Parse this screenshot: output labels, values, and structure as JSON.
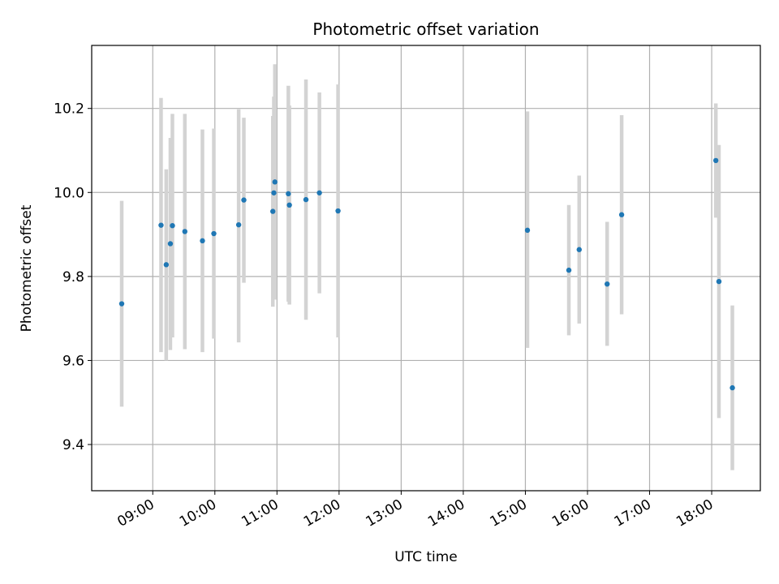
{
  "chart_data": {
    "type": "scatter",
    "title": "Photometric offset variation",
    "xlabel": "UTC time",
    "ylabel": "Photometric offset",
    "xlim": [
      "08:01",
      "18:47"
    ],
    "ylim": [
      9.29,
      10.35
    ],
    "x_ticks": [
      "09:00",
      "10:00",
      "11:00",
      "12:00",
      "13:00",
      "14:00",
      "15:00",
      "16:00",
      "17:00",
      "18:00"
    ],
    "y_ticks": [
      9.4,
      9.6,
      9.8,
      10.0,
      10.2
    ],
    "y_tick_labels": [
      "9.4",
      "9.6",
      "9.8",
      "10.0",
      "10.2"
    ],
    "grid": true,
    "colors": {
      "point": "#1f77b4",
      "errorbar": "#d3d3d3",
      "grid": "#b0b0b0"
    },
    "points": [
      {
        "x": "08:30",
        "y": 9.735,
        "lo": 9.49,
        "hi": 9.98
      },
      {
        "x": "09:08",
        "y": 9.922,
        "lo": 9.62,
        "hi": 10.225
      },
      {
        "x": "09:13",
        "y": 9.828,
        "lo": 9.6,
        "hi": 10.055
      },
      {
        "x": "09:17",
        "y": 9.878,
        "lo": 9.625,
        "hi": 10.13
      },
      {
        "x": "09:19",
        "y": 9.921,
        "lo": 9.655,
        "hi": 10.187
      },
      {
        "x": "09:31",
        "y": 9.907,
        "lo": 9.627,
        "hi": 10.187
      },
      {
        "x": "09:48",
        "y": 9.885,
        "lo": 9.62,
        "hi": 10.15
      },
      {
        "x": "09:59",
        "y": 9.902,
        "lo": 9.652,
        "hi": 10.152
      },
      {
        "x": "10:23",
        "y": 9.923,
        "lo": 9.643,
        "hi": 10.198
      },
      {
        "x": "10:28",
        "y": 9.982,
        "lo": 9.785,
        "hi": 10.178
      },
      {
        "x": "10:56",
        "y": 9.955,
        "lo": 9.728,
        "hi": 10.182
      },
      {
        "x": "10:57",
        "y": 9.999,
        "lo": 9.749,
        "hi": 10.228
      },
      {
        "x": "10:58",
        "y": 10.025,
        "lo": 9.745,
        "hi": 10.305
      },
      {
        "x": "11:11",
        "y": 9.997,
        "lo": 9.74,
        "hi": 10.254
      },
      {
        "x": "11:12",
        "y": 9.97,
        "lo": 9.733,
        "hi": 10.207
      },
      {
        "x": "11:28",
        "y": 9.983,
        "lo": 9.697,
        "hi": 10.269
      },
      {
        "x": "11:41",
        "y": 9.999,
        "lo": 9.76,
        "hi": 10.238
      },
      {
        "x": "11:59",
        "y": 9.956,
        "lo": 9.655,
        "hi": 10.257
      },
      {
        "x": "15:02",
        "y": 9.91,
        "lo": 9.63,
        "hi": 10.193
      },
      {
        "x": "15:42",
        "y": 9.815,
        "lo": 9.66,
        "hi": 9.97
      },
      {
        "x": "15:52",
        "y": 9.864,
        "lo": 9.688,
        "hi": 10.04
      },
      {
        "x": "16:19",
        "y": 9.782,
        "lo": 9.635,
        "hi": 9.93
      },
      {
        "x": "16:33",
        "y": 9.947,
        "lo": 9.71,
        "hi": 10.184
      },
      {
        "x": "18:04",
        "y": 10.076,
        "lo": 9.94,
        "hi": 10.212
      },
      {
        "x": "18:07",
        "y": 9.788,
        "lo": 9.463,
        "hi": 10.113
      },
      {
        "x": "18:20",
        "y": 9.535,
        "lo": 9.339,
        "hi": 9.731
      }
    ]
  }
}
